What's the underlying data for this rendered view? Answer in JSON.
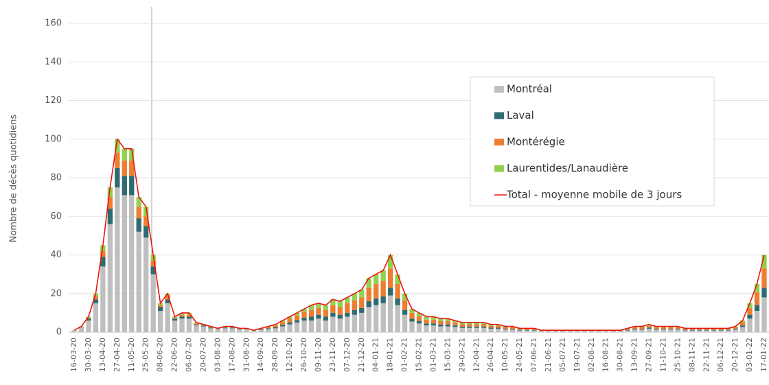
{
  "chart_data": {
    "type": "bar",
    "stacked": true,
    "y_label": "Nombre de décès quotidiens",
    "categories": [
      "16-03-20",
      null,
      "30-03-20",
      null,
      "13-04-20",
      null,
      "27-04-20",
      null,
      "11-05-20",
      null,
      "25-05-20",
      null,
      "08-06-20",
      null,
      "22-06-20",
      null,
      "06-07-20",
      null,
      "20-07-20",
      null,
      "03-08-20",
      null,
      "17-08-20",
      null,
      "31-08-20",
      null,
      "14-09-20",
      null,
      "28-09-20",
      null,
      "12-10-20",
      null,
      "26-10-20",
      null,
      "09-11-20",
      null,
      "23-11-20",
      null,
      "07-12-20",
      null,
      "21-12-20",
      null,
      "04-01-21",
      null,
      "18-01-21",
      null,
      "01-02-21",
      null,
      "15-02-21",
      null,
      "01-03-21",
      null,
      "15-03-21",
      null,
      "29-03-21",
      null,
      "12-04-21",
      null,
      "26-04-21",
      null,
      "10-05-21",
      null,
      "24-05-21",
      null,
      "07-06-21",
      null,
      "21-06-21",
      null,
      "05-07-21",
      null,
      "19-07-21",
      null,
      "02-08-21",
      null,
      "16-08-21",
      null,
      "30-08-21",
      null,
      "13-09-21",
      null,
      "27-09-21",
      null,
      "11-10-21",
      null,
      "25-10-21",
      null,
      "08-11-21",
      null,
      "22-11-21",
      null,
      "06-12-21",
      null,
      "20-12-21",
      null,
      "03-01-22",
      null,
      "17-01-22"
    ],
    "series": [
      {
        "name": "Montréal",
        "color": "#bfbfbf",
        "values": [
          1,
          2.5,
          6,
          15,
          34,
          56,
          75,
          71,
          71,
          52,
          49,
          30,
          11,
          15,
          6,
          7,
          7,
          3.5,
          3,
          2,
          1.5,
          2,
          2,
          1.5,
          1.5,
          0.7,
          1.2,
          1.6,
          2,
          3,
          4,
          5,
          6,
          6,
          7,
          6,
          8,
          7,
          8,
          9,
          10,
          13,
          14,
          15,
          19,
          14,
          9,
          5.5,
          4.5,
          3.5,
          3.5,
          3,
          3,
          2.7,
          2.2,
          2.2,
          2.2,
          2.2,
          1.8,
          1.8,
          1.3,
          1.3,
          0.9,
          0.9,
          0.9,
          0.5,
          0.5,
          0.5,
          0.5,
          0.5,
          0.5,
          0.5,
          0.5,
          0.5,
          0.5,
          0.5,
          0.5,
          0.9,
          1.3,
          1.3,
          1.8,
          1.3,
          1.3,
          1.3,
          1.3,
          0.9,
          0.9,
          0.9,
          0.9,
          0.9,
          0.9,
          0.9,
          1.3,
          2.7,
          7,
          11,
          18
        ]
      },
      {
        "name": "Laval",
        "color": "#2e6b72",
        "values": [
          0,
          0.2,
          1,
          2,
          5,
          8,
          10,
          10,
          10,
          7,
          6,
          4,
          2,
          2,
          1,
          1,
          1,
          0.5,
          0.4,
          0.4,
          0.2,
          0.4,
          0.4,
          0.2,
          0.2,
          0.1,
          0.3,
          0.4,
          0.5,
          0.7,
          1,
          1.2,
          1.5,
          2,
          2,
          2,
          2,
          2,
          2,
          2.5,
          2.5,
          3,
          3.5,
          3.5,
          4,
          3.5,
          2.5,
          1.5,
          1.2,
          1,
          1,
          1,
          1,
          0.8,
          0.6,
          0.6,
          0.6,
          0.6,
          0.5,
          0.5,
          0.4,
          0.4,
          0.3,
          0.3,
          0.3,
          0.1,
          0.1,
          0.1,
          0.1,
          0.1,
          0.1,
          0.1,
          0.1,
          0.1,
          0.1,
          0.1,
          0.1,
          0.3,
          0.4,
          0.4,
          0.5,
          0.4,
          0.4,
          0.4,
          0.4,
          0.3,
          0.3,
          0.3,
          0.3,
          0.3,
          0.3,
          0.3,
          0.4,
          0.8,
          2,
          3,
          5
        ]
      },
      {
        "name": "Montérégie",
        "color": "#ed7d31",
        "values": [
          0,
          0.2,
          0.5,
          1.5,
          3,
          6,
          8,
          8,
          8,
          6,
          5,
          3,
          1,
          2,
          0.5,
          1,
          1,
          0.5,
          0.3,
          0.3,
          0.2,
          0.3,
          0.3,
          0.2,
          0.2,
          0.1,
          0.3,
          0.6,
          1,
          1.5,
          2,
          2.5,
          3,
          3.5,
          3.5,
          3.5,
          4,
          4,
          5,
          5,
          5.5,
          7,
          7.5,
          8,
          10,
          7.5,
          5,
          3,
          2.5,
          2,
          2,
          1.8,
          1.8,
          1.5,
          1.3,
          1.3,
          1.3,
          1.3,
          1,
          1,
          0.8,
          0.8,
          0.5,
          0.5,
          0.5,
          0.3,
          0.3,
          0.3,
          0.3,
          0.3,
          0.3,
          0.3,
          0.3,
          0.3,
          0.3,
          0.3,
          0.3,
          0.5,
          0.8,
          0.8,
          1,
          0.8,
          0.8,
          0.8,
          0.8,
          0.5,
          0.5,
          0.5,
          0.5,
          0.5,
          0.5,
          0.5,
          0.8,
          1.5,
          3.5,
          6.5,
          10
        ]
      },
      {
        "name": "Laurentides/Lanaudière",
        "color": "#92d050",
        "values": [
          0,
          0.1,
          0.5,
          1.5,
          3,
          5,
          7,
          6,
          6,
          5,
          5,
          3,
          1,
          1,
          0.5,
          1,
          1,
          0.5,
          0.3,
          0.3,
          0.1,
          0.3,
          0.3,
          0.1,
          0.1,
          0.1,
          0.2,
          0.4,
          0.5,
          0.8,
          1,
          1.3,
          1.5,
          2.5,
          2.5,
          2.5,
          3,
          3,
          3,
          3.5,
          4,
          5,
          5,
          5.5,
          7,
          5,
          3.5,
          2,
          1.8,
          1.5,
          1.5,
          1.2,
          1.2,
          1,
          0.9,
          0.9,
          0.9,
          0.9,
          0.7,
          0.7,
          0.5,
          0.5,
          0.3,
          0.3,
          0.3,
          0.1,
          0.1,
          0.1,
          0.1,
          0.1,
          0.1,
          0.1,
          0.1,
          0.1,
          0.1,
          0.1,
          0.1,
          0.3,
          0.5,
          0.5,
          0.7,
          0.5,
          0.5,
          0.5,
          0.5,
          0.3,
          0.3,
          0.3,
          0.3,
          0.3,
          0.3,
          0.3,
          0.5,
          1,
          2.5,
          4.5,
          7
        ]
      },
      {
        "name": "Total - moyenne mobile de 3 jours",
        "color": "#e8160c",
        "type": "line",
        "values": [
          1,
          3,
          8,
          20,
          45,
          75,
          100,
          95,
          95,
          70,
          65,
          40,
          15,
          20,
          8,
          10,
          10,
          5,
          4,
          3,
          2,
          3,
          3,
          2,
          2,
          1,
          2,
          3,
          4,
          6,
          8,
          10,
          12,
          14,
          15,
          14,
          17,
          16,
          18,
          20,
          22,
          28,
          30,
          32,
          40,
          30,
          20,
          12,
          10,
          8,
          8,
          7,
          7,
          6,
          5,
          5,
          5,
          5,
          4,
          4,
          3,
          3,
          2,
          2,
          2,
          1,
          1,
          1,
          1,
          1,
          1,
          1,
          1,
          1,
          1,
          1,
          1,
          2,
          3,
          3,
          4,
          3,
          3,
          3,
          3,
          2,
          2,
          2,
          2,
          2,
          2,
          2,
          3,
          6,
          15,
          25,
          40
        ]
      }
    ],
    "ylim": [
      0,
      160
    ],
    "yticks": [
      0,
      20,
      40,
      60,
      80,
      100,
      120,
      140,
      160
    ],
    "grid": true,
    "legend": "upper right"
  }
}
